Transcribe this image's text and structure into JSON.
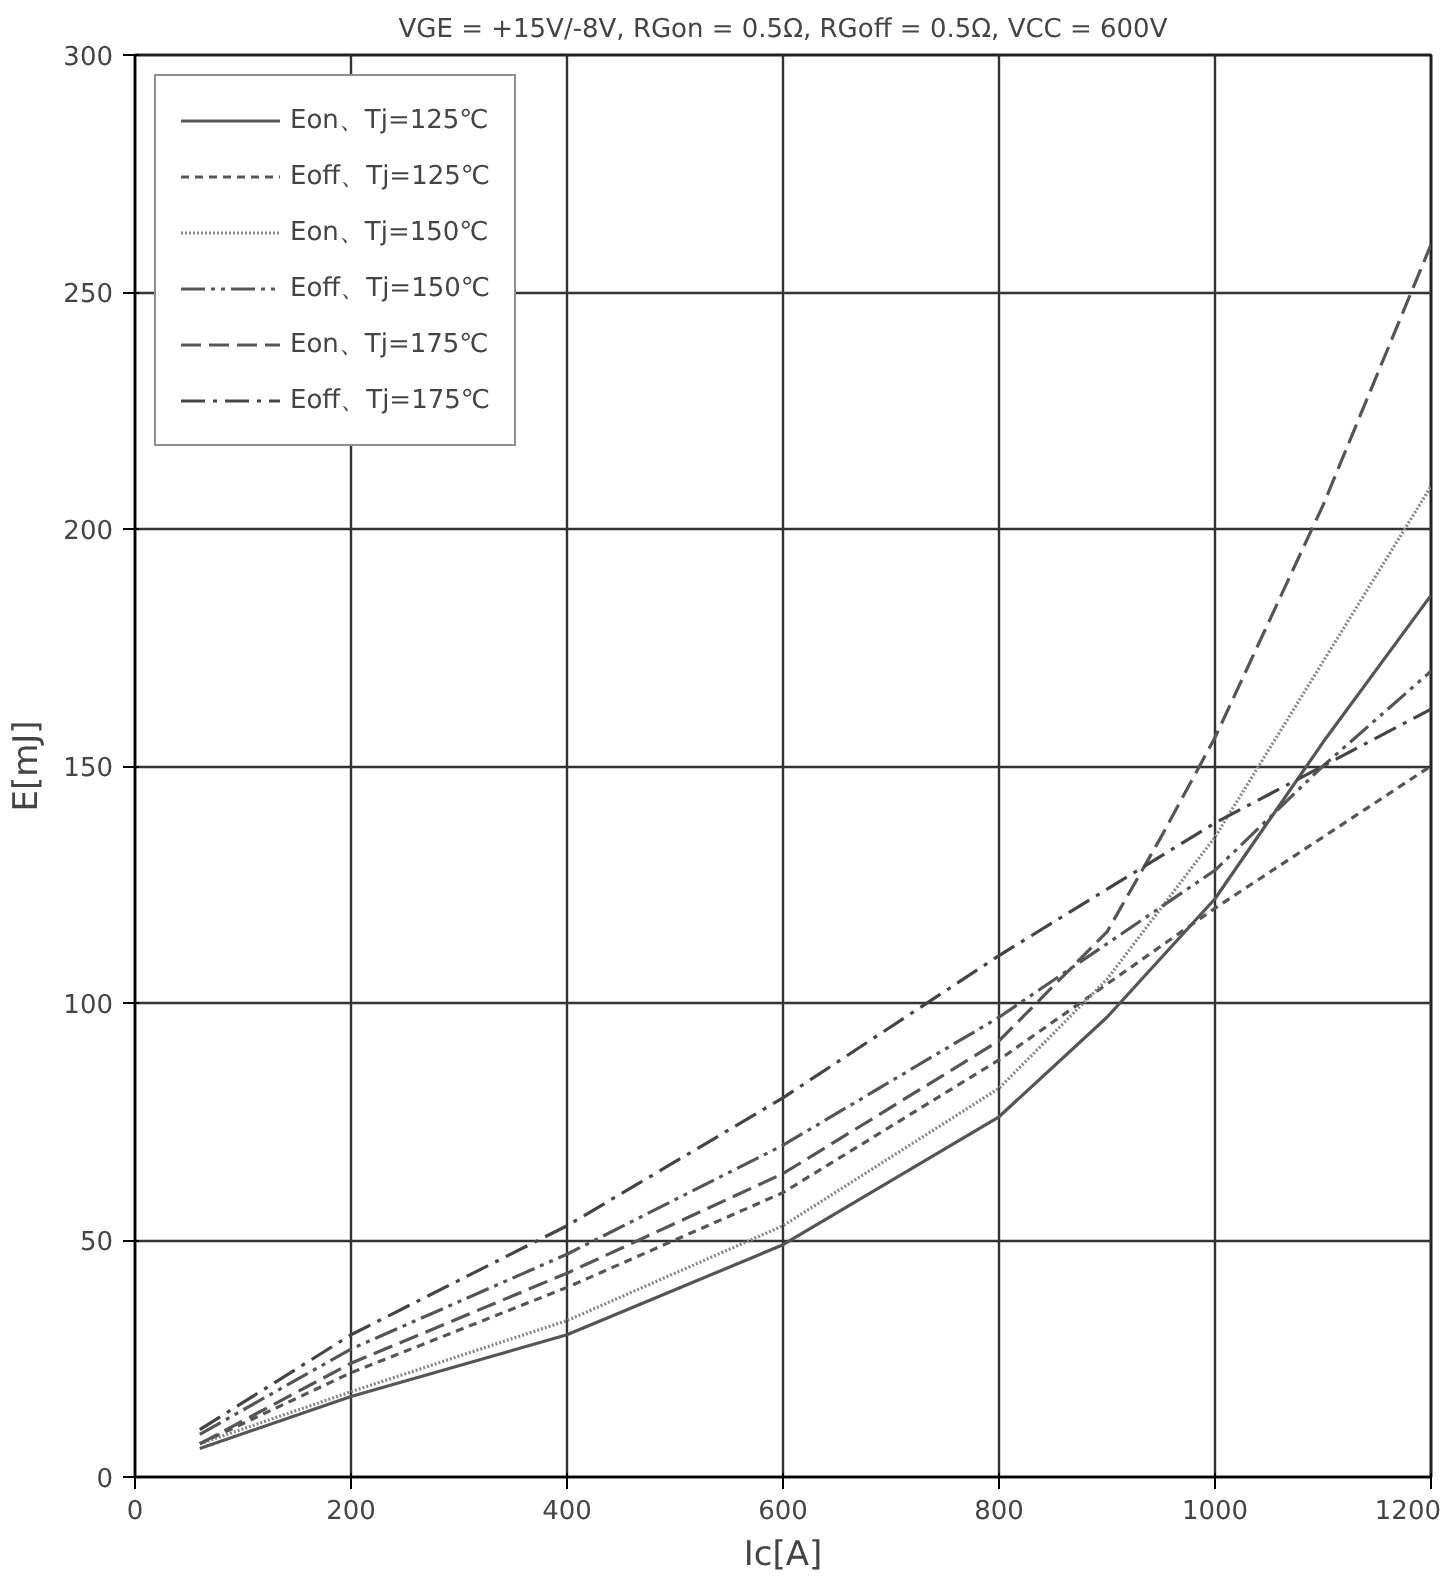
{
  "chart_data": {
    "type": "line",
    "title": "VGE = +15V/-8V, RGon = 0.5Ω, RGoff = 0.5Ω, VCC = 600V",
    "xlabel": "Ic[A]",
    "ylabel": "E[mJ]",
    "xlim": [
      0,
      1200
    ],
    "ylim": [
      0,
      300
    ],
    "xticks": [
      0,
      200,
      400,
      600,
      800,
      1000,
      1200
    ],
    "yticks": [
      0,
      50,
      100,
      150,
      200,
      250,
      300
    ],
    "grid": true,
    "legend": "top left",
    "series": [
      {
        "name": "Eon、Tj=125℃",
        "color": "#555555",
        "line_style": "solid",
        "x": [
          60,
          200,
          400,
          600,
          800,
          900,
          1000,
          1100,
          1200
        ],
        "values": [
          6,
          17,
          30,
          49,
          76,
          97,
          122,
          155,
          186
        ]
      },
      {
        "name": "Eoff、Tj=125℃",
        "color": "#555555",
        "line_style": "dashed",
        "x": [
          60,
          200,
          400,
          600,
          800,
          1000,
          1100,
          1200
        ],
        "values": [
          7,
          22,
          40,
          60,
          88,
          120,
          135,
          150
        ]
      },
      {
        "name": "Eon、Tj=150℃",
        "color": "#888888",
        "line_style": "dotted",
        "x": [
          60,
          200,
          400,
          600,
          800,
          900,
          1000,
          1100,
          1200
        ],
        "values": [
          7,
          18,
          33,
          53,
          82,
          105,
          135,
          172,
          209
        ]
      },
      {
        "name": "Eoff、Tj=150℃",
        "color": "#555555",
        "line_style": "dashdotdot",
        "x": [
          60,
          200,
          400,
          600,
          800,
          1000,
          1100,
          1200
        ],
        "values": [
          9,
          27,
          47,
          70,
          97,
          128,
          150,
          170
        ]
      },
      {
        "name": "Eon、Tj=175℃",
        "color": "#555555",
        "line_style": "longdash",
        "x": [
          60,
          200,
          400,
          600,
          800,
          900,
          950,
          1000,
          1100,
          1200
        ],
        "values": [
          7,
          24,
          43,
          64,
          92,
          115,
          135,
          156,
          205,
          260
        ]
      },
      {
        "name": "Eoff、Tj=175℃",
        "color": "#444444",
        "line_style": "dashdot",
        "x": [
          60,
          200,
          400,
          600,
          800,
          1000,
          1100,
          1200
        ],
        "values": [
          10,
          30,
          53,
          80,
          110,
          138,
          150,
          162
        ]
      }
    ]
  }
}
